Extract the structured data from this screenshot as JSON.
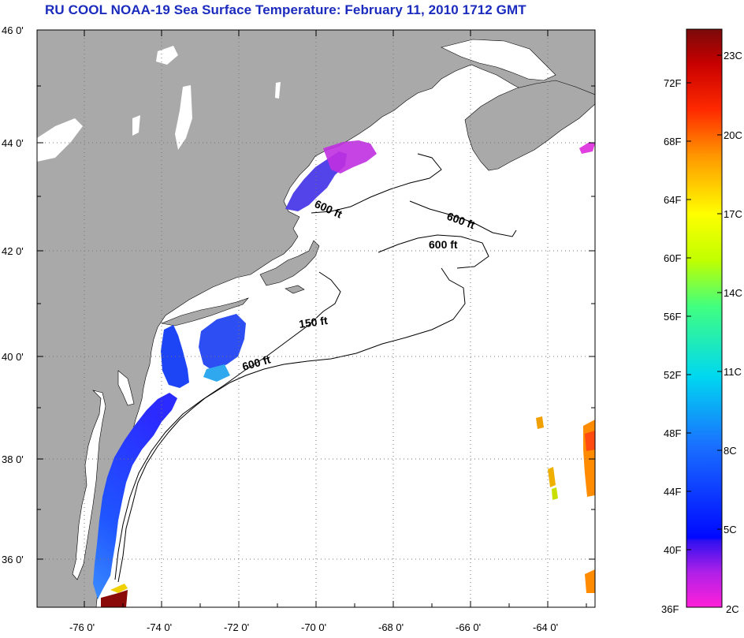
{
  "title": "RU COOL  NOAA-19  Sea Surface Temperature:  February 11, 2010 1712 GMT",
  "map": {
    "lat_labels": [
      "46 0'",
      "44 0'",
      "42 0'",
      "40 0'",
      "38 0'",
      "36 0'"
    ],
    "lon_labels": [
      "-76 0'",
      "-74 0'",
      "-72 0'",
      "-70 0'",
      "-68 0'",
      "-66 0'",
      "-64 0'"
    ],
    "contour_labels": [
      "600 ft",
      "600 ft",
      "600 ft",
      "150 ft",
      "600 ft"
    ],
    "colors": {
      "land": "#a9a9a9",
      "ocean": "#ffffff",
      "grid": "#777777"
    }
  },
  "colorbar": {
    "fahrenheit_labels": [
      "72F",
      "68F",
      "64F",
      "60F",
      "56F",
      "52F",
      "48F",
      "44F",
      "40F",
      "36F"
    ],
    "celsius_labels": [
      "23C",
      "20C",
      "17C",
      "14C",
      "11C",
      "8C",
      "5C",
      "2C"
    ]
  }
}
